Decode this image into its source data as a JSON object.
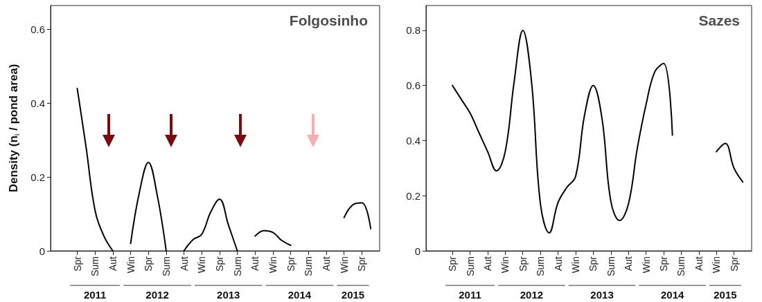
{
  "chart_data": [
    {
      "type": "line",
      "title": "Folgosinho",
      "ylabel": "Density (n$_{i}$ / pond area)",
      "categories": [
        null,
        null,
        null,
        "Spr",
        null,
        "Sum",
        null,
        "Aut",
        null,
        "Win",
        null,
        "Spr",
        null,
        "Sum",
        null,
        "Aut",
        null,
        "Win",
        null,
        "Spr",
        null,
        "Sum",
        null,
        "Aut",
        null,
        "Win",
        null,
        "Spr",
        null,
        "Sum",
        null,
        "Aut",
        null,
        "Win",
        null,
        "Spr",
        null,
        null
      ],
      "ylim": [
        0,
        0.665
      ],
      "yticks": [
        0,
        0.2,
        0.4,
        0.6
      ],
      "grid": false,
      "legend": false,
      "marker": "none",
      "line_style": "solid",
      "series": [
        {
          "color": "#000000",
          "values": [
            null,
            null,
            null,
            0.44,
            0.28,
            0.11,
            0.04,
            0,
            null,
            0.02,
            0.16,
            0.24,
            0.15,
            0,
            null,
            0,
            0.03,
            0.045,
            0.105,
            0.14,
            0.07,
            0,
            null,
            0.04,
            0.055,
            0.05,
            0.028,
            0.015,
            null,
            null,
            null,
            null,
            null,
            0.09,
            0.125,
            0.13,
            0.06,
            null
          ]
        }
      ],
      "annotations": [
        "2011",
        "2012",
        "2013",
        "2014",
        "2015"
      ]
    },
    {
      "type": "line",
      "title": "Sazes",
      "categories": [
        null,
        null,
        null,
        "Spr",
        null,
        "Sum",
        null,
        "Aut",
        null,
        "Win",
        null,
        "Spr",
        null,
        "Sum",
        null,
        "Aut",
        null,
        "Win",
        null,
        "Spr",
        null,
        "Sum",
        null,
        "Aut",
        null,
        "Win",
        null,
        "Spr",
        null,
        "Sum",
        null,
        "Aut",
        null,
        "Win",
        null,
        "Spr",
        null,
        null
      ],
      "ylim": [
        0,
        0.89
      ],
      "yticks": [
        0,
        0.2,
        0.4,
        0.6,
        0.8
      ],
      "grid": false,
      "legend": false,
      "marker": "none",
      "line_style": "solid",
      "series": [
        {
          "color": "#000000",
          "values": [
            null,
            null,
            null,
            0.6,
            0.55,
            0.5,
            0.43,
            0.36,
            0.29,
            0.36,
            0.61,
            0.8,
            0.61,
            0.17,
            0.065,
            0.175,
            0.23,
            0.27,
            0.49,
            0.6,
            0.48,
            0.18,
            0.11,
            0.17,
            0.37,
            0.53,
            0.65,
            0.68,
            0.42,
            null,
            null,
            null,
            null,
            0.36,
            0.39,
            0.3,
            0.25,
            null
          ]
        }
      ],
      "annotations": [
        "2011",
        "2012",
        "2013",
        "2014",
        "2015"
      ]
    }
  ]
}
